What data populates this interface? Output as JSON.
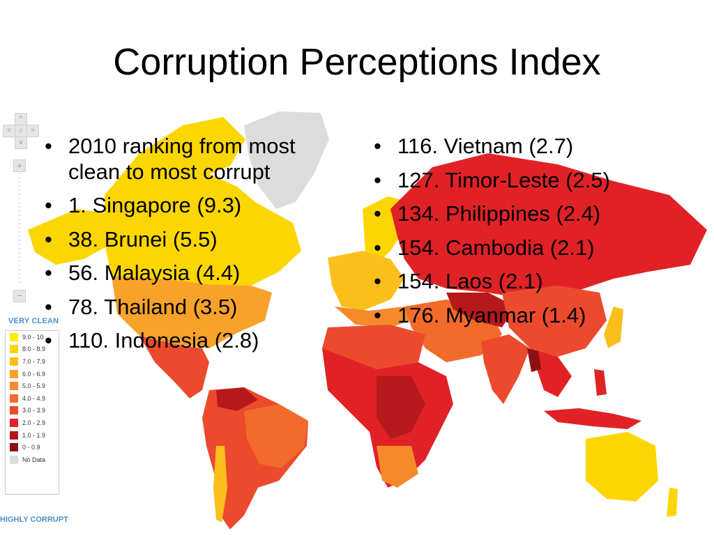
{
  "slide": {
    "title": "Corruption Perceptions Index"
  },
  "left_bullets": [
    "2010 ranking from most clean to most corrupt",
    "1. Singapore (9.3)",
    "38. Brunei (5.5)",
    "56. Malaysia (4.4)",
    "78. Thailand (3.5)",
    "110. Indonesia (2.8)"
  ],
  "right_bullets": [
    "116. Vietnam (2.7)",
    "127. Timor-Leste (2.5)",
    "134. Philippines (2.4)",
    "154. Cambodia (2.1)",
    "154. Laos (2.1)",
    "176. Myanmar (1.4)"
  ],
  "legend": {
    "top_label": "VERY CLEAN",
    "bottom_label": "HIGHLY CORRUPT",
    "items": [
      {
        "label": "9.0 - 10",
        "color": "#ffee00"
      },
      {
        "label": "8.0 - 8.9",
        "color": "#fcd600"
      },
      {
        "label": "7.0 - 7.9",
        "color": "#fbbf1c"
      },
      {
        "label": "6.0 - 6.9",
        "color": "#f9a22a"
      },
      {
        "label": "5.0 - 5.9",
        "color": "#f58a2c"
      },
      {
        "label": "4.0 - 4.9",
        "color": "#f26b2b"
      },
      {
        "label": "3.0 - 3.9",
        "color": "#ec4a2d"
      },
      {
        "label": "2.0 - 2.9",
        "color": "#e02227"
      },
      {
        "label": "1.0 - 1.9",
        "color": "#b5191c"
      },
      {
        "label": "0 - 0.9",
        "color": "#8a1114"
      },
      {
        "label": "No Data",
        "color": "#dcdcdc"
      }
    ]
  },
  "map_controls": {
    "zoom_in": "+",
    "zoom_out": "−",
    "pan_left": "<",
    "pan_right": ">",
    "pan_up": "^",
    "pan_down": "v",
    "home": "⌂"
  }
}
